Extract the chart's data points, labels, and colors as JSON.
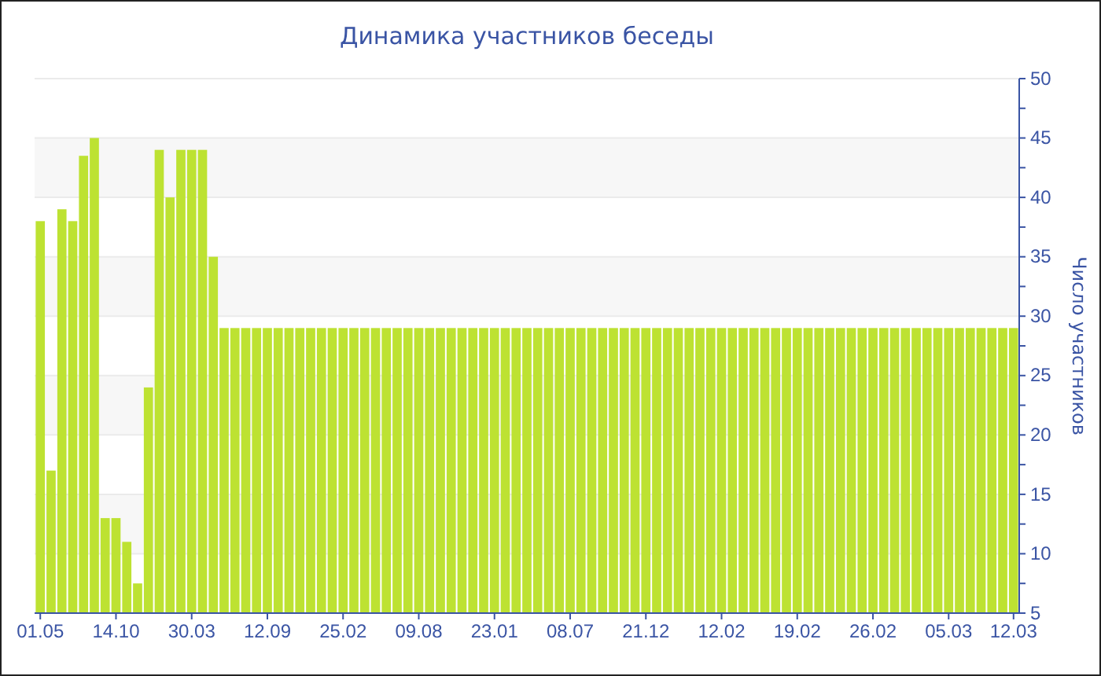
{
  "chart_data": {
    "type": "bar",
    "title": "Динамика участников беседы",
    "ylabel": "Число участников",
    "categories": [
      "01.05",
      null,
      null,
      null,
      null,
      null,
      null,
      "14.10",
      null,
      null,
      null,
      null,
      null,
      null,
      "30.03",
      null,
      null,
      null,
      null,
      null,
      null,
      "12.09",
      null,
      null,
      null,
      null,
      null,
      null,
      "25.02",
      null,
      null,
      null,
      null,
      null,
      null,
      "09.08",
      null,
      null,
      null,
      null,
      null,
      null,
      "23.01",
      null,
      null,
      null,
      null,
      null,
      null,
      "08.07",
      null,
      null,
      null,
      null,
      null,
      null,
      "21.12",
      null,
      null,
      null,
      null,
      null,
      null,
      "12.02",
      null,
      null,
      null,
      null,
      null,
      null,
      "19.02",
      null,
      null,
      null,
      null,
      null,
      null,
      "26.02",
      null,
      null,
      null,
      null,
      null,
      null,
      "05.03",
      null,
      null,
      null,
      null,
      null,
      "12.03"
    ],
    "values": [
      38,
      17,
      39,
      38,
      43.5,
      45,
      13,
      13,
      11,
      7.5,
      24,
      44,
      40,
      44,
      44,
      44,
      35,
      29,
      29,
      29,
      29,
      29,
      29,
      29,
      29,
      29,
      29,
      29,
      29,
      29,
      29,
      29,
      29,
      29,
      29,
      29,
      29,
      29,
      29,
      29,
      29,
      29,
      29,
      29,
      29,
      29,
      29,
      29,
      29,
      29,
      29,
      29,
      29,
      29,
      29,
      29,
      29,
      29,
      29,
      29,
      29,
      29,
      29,
      29,
      29,
      29,
      29,
      29,
      29,
      29,
      29,
      29,
      29,
      29,
      29,
      29,
      29,
      29,
      29,
      29,
      29,
      29,
      29,
      29,
      29,
      29,
      29,
      29,
      29,
      29,
      29
    ],
    "color": "#bde232",
    "ylim": [
      5,
      50
    ],
    "yticks": [
      5,
      {
        "value": 7.5,
        "label": null
      },
      10,
      {
        "value": 12.5,
        "label": null
      },
      15,
      {
        "value": 17.5,
        "label": null
      },
      20,
      {
        "value": 22.5,
        "label": null
      },
      25,
      {
        "value": 27.5,
        "label": null
      },
      30,
      {
        "value": 32.5,
        "label": null
      },
      35,
      {
        "value": 37.5,
        "label": null
      },
      40,
      {
        "value": 42.5,
        "label": null
      },
      45,
      {
        "value": 47.5,
        "label": null
      },
      50
    ],
    "grid": "y"
  }
}
